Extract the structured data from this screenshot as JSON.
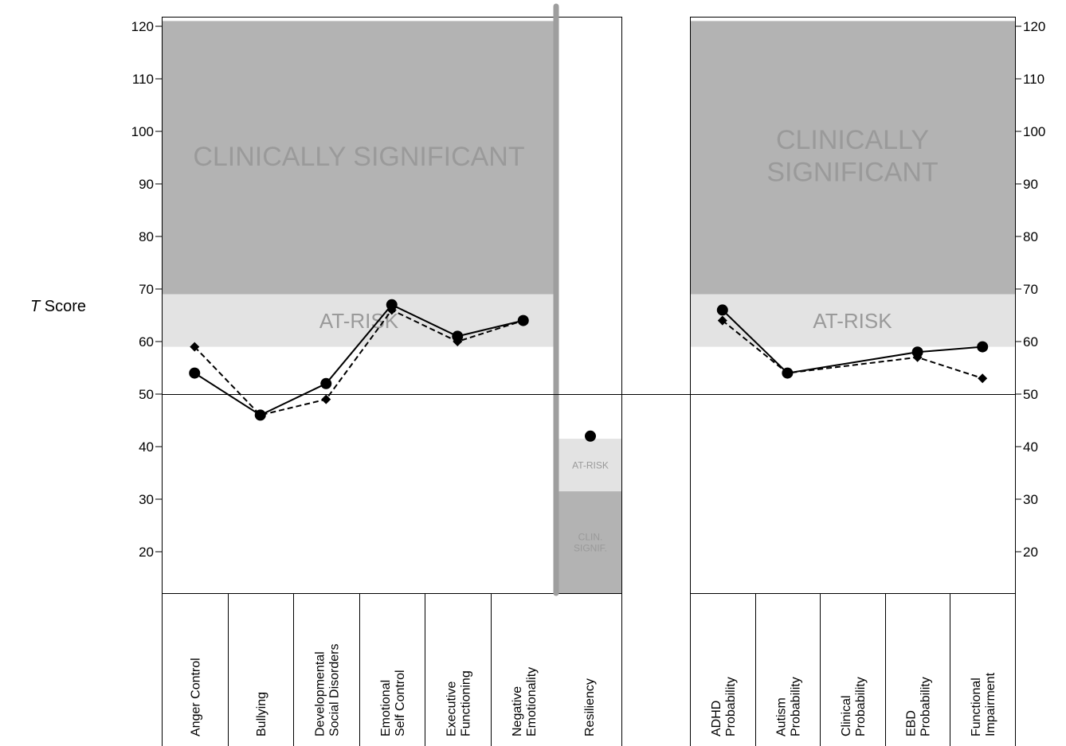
{
  "chart_data": {
    "type": "line",
    "ylabel_italic": "T",
    "ylabel_rest": " Score",
    "ylim": [
      12,
      121
    ],
    "yticks": [
      20,
      30,
      40,
      50,
      60,
      70,
      80,
      90,
      100,
      110,
      120
    ],
    "reference_line": 50,
    "colors": {
      "clinical": "#b3b3b3",
      "at_risk": "#e3e3e3",
      "divider": "#9e9e9e",
      "zone_text": "#9a9a9a"
    },
    "left_panel": {
      "zones": [
        {
          "label": "CLINICALLY SIGNIFICANT",
          "from": 69,
          "to": 121,
          "kind": "clinical"
        },
        {
          "label": "AT-RISK",
          "from": 59,
          "to": 69,
          "kind": "at_risk"
        }
      ],
      "categories": [
        [
          "Anger Control"
        ],
        [
          "Bullying"
        ],
        [
          "Developmental",
          "Social Disorders"
        ],
        [
          "Emotional",
          "Self Control"
        ],
        [
          "Executive",
          "Functioning"
        ],
        [
          "Negative",
          "Emotionality"
        ]
      ],
      "series": [
        {
          "style": "solid",
          "marker": "circle",
          "values": [
            54,
            46,
            52,
            67,
            61,
            64
          ]
        },
        {
          "style": "dashed",
          "marker": "diamond",
          "values": [
            59,
            46,
            49,
            66,
            60,
            64
          ]
        }
      ]
    },
    "resiliency_panel": {
      "category": [
        "Resiliency"
      ],
      "zones": [
        {
          "label": [
            "AT-RISK"
          ],
          "from": 31.5,
          "to": 41.5,
          "kind": "at_risk"
        },
        {
          "label": [
            "CLIN.",
            "SIGNIF."
          ],
          "from": 12,
          "to": 31.5,
          "kind": "clinical"
        }
      ],
      "series": [
        {
          "style": "solid",
          "marker": "circle",
          "values": [
            42
          ]
        }
      ]
    },
    "right_panel": {
      "zones": [
        {
          "label": [
            "CLINICALLY",
            "SIGNIFICANT"
          ],
          "from": 69,
          "to": 121,
          "kind": "clinical"
        },
        {
          "label": [
            "AT-RISK"
          ],
          "from": 59,
          "to": 69,
          "kind": "at_risk"
        }
      ],
      "categories": [
        [
          "ADHD",
          "Probability"
        ],
        [
          "Autism",
          "Probability"
        ],
        [
          "Clinical",
          "Probability"
        ],
        [
          "EBD",
          "Probability"
        ],
        [
          "Functional",
          "Impairment"
        ]
      ],
      "series": [
        {
          "style": "solid",
          "marker": "circle",
          "points": [
            {
              "cat": 0,
              "value": 66
            },
            {
              "cat": 1,
              "value": 54
            },
            {
              "cat": 3,
              "value": 58
            },
            {
              "cat": 4,
              "value": 59
            }
          ]
        },
        {
          "style": "dashed",
          "marker": "diamond",
          "points": [
            {
              "cat": 0,
              "value": 64
            },
            {
              "cat": 1,
              "value": 54
            },
            {
              "cat": 3,
              "value": 57
            },
            {
              "cat": 4,
              "value": 53
            }
          ]
        }
      ]
    }
  }
}
